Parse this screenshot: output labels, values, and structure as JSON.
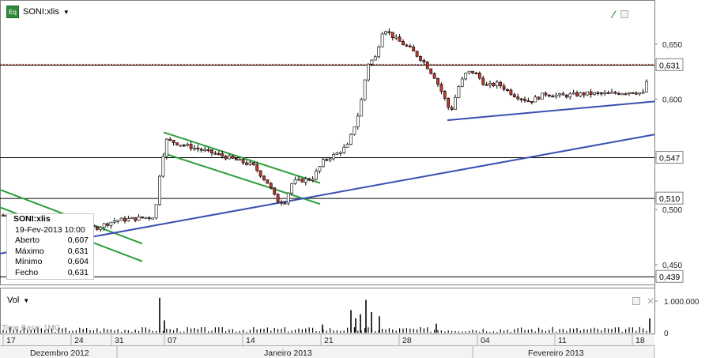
{
  "header": {
    "badge": "Eq",
    "instrument": "SONI:xlis"
  },
  "volume_panel": {
    "title": "Vol",
    "axis_labels": [
      "1.000.000",
      "0"
    ]
  },
  "watermark": "Time Base: 1MG",
  "info_box": {
    "title": "SONI:xlis",
    "datetime": "19-Fev-2013 10:00",
    "rows": [
      {
        "label": "Aberto",
        "value": "0,607"
      },
      {
        "label": "Máximo",
        "value": "0,631"
      },
      {
        "label": "Mínimo",
        "value": "0,604"
      },
      {
        "label": "Fecho",
        "value": "0,631"
      }
    ]
  },
  "chart_data": {
    "type": "candlestick",
    "ylim": [
      0.432,
      0.69
    ],
    "y_ticks": [
      "0,650",
      "0,600",
      "0,500",
      "0,450"
    ],
    "x_day_labels": [
      "17",
      "24",
      "31",
      "07",
      "14",
      "21",
      "28",
      "04",
      "11",
      "18"
    ],
    "month_labels": [
      "Dezembro 2012",
      "Janeiro 2013",
      "Fevereiro 2013"
    ],
    "last_price": {
      "value": 0.631,
      "label": "0,631"
    },
    "h_levels": [
      {
        "value": 0.547,
        "label": "0,547"
      },
      {
        "value": 0.51,
        "label": "0,510"
      },
      {
        "value": 0.439,
        "label": "0,439"
      }
    ],
    "trend_lines": [
      {
        "color": "#2e9e3a",
        "points": [
          [
            0,
            0.518
          ],
          [
            180,
            0.469
          ]
        ]
      },
      {
        "color": "#2e9e3a",
        "points": [
          [
            0,
            0.502
          ],
          [
            180,
            0.453
          ]
        ]
      },
      {
        "color": "#2e9e3a",
        "points": [
          [
            207,
            0.57
          ],
          [
            405,
            0.524
          ]
        ]
      },
      {
        "color": "#2e9e3a",
        "points": [
          [
            207,
            0.551
          ],
          [
            405,
            0.505
          ]
        ]
      },
      {
        "color": "#3a4fb0",
        "points": [
          [
            0,
            0.46
          ],
          [
            828,
            0.568
          ]
        ]
      },
      {
        "color": "#3a4fb0",
        "points": [
          [
            566,
            0.581
          ],
          [
            828,
            0.598
          ]
        ]
      }
    ],
    "price_waypoints": [
      [
        4,
        0.495
      ],
      [
        60,
        0.492
      ],
      [
        120,
        0.483
      ],
      [
        145,
        0.49
      ],
      [
        175,
        0.492
      ],
      [
        196,
        0.494
      ],
      [
        203,
        0.538
      ],
      [
        210,
        0.563
      ],
      [
        240,
        0.557
      ],
      [
        280,
        0.549
      ],
      [
        320,
        0.54
      ],
      [
        340,
        0.523
      ],
      [
        350,
        0.508
      ],
      [
        360,
        0.507
      ],
      [
        370,
        0.525
      ],
      [
        395,
        0.528
      ],
      [
        410,
        0.545
      ],
      [
        425,
        0.55
      ],
      [
        440,
        0.558
      ],
      [
        455,
        0.59
      ],
      [
        465,
        0.632
      ],
      [
        475,
        0.638
      ],
      [
        485,
        0.665
      ],
      [
        500,
        0.655
      ],
      [
        520,
        0.645
      ],
      [
        535,
        0.635
      ],
      [
        550,
        0.62
      ],
      [
        560,
        0.605
      ],
      [
        570,
        0.588
      ],
      [
        580,
        0.611
      ],
      [
        590,
        0.624
      ],
      [
        600,
        0.625
      ],
      [
        615,
        0.612
      ],
      [
        630,
        0.614
      ],
      [
        650,
        0.604
      ],
      [
        670,
        0.598
      ],
      [
        690,
        0.605
      ],
      [
        710,
        0.603
      ],
      [
        740,
        0.605
      ],
      [
        770,
        0.605
      ],
      [
        800,
        0.607
      ],
      [
        815,
        0.605
      ],
      [
        822,
        0.631
      ]
    ],
    "volume_spikes": [
      [
        202,
        0.85
      ],
      [
        208,
        0.3
      ],
      [
        408,
        0.2
      ],
      [
        444,
        0.55
      ],
      [
        450,
        0.35
      ],
      [
        456,
        0.45
      ],
      [
        463,
        0.8
      ],
      [
        470,
        0.5
      ],
      [
        480,
        0.4
      ],
      [
        552,
        0.22
      ],
      [
        822,
        0.35
      ]
    ]
  }
}
